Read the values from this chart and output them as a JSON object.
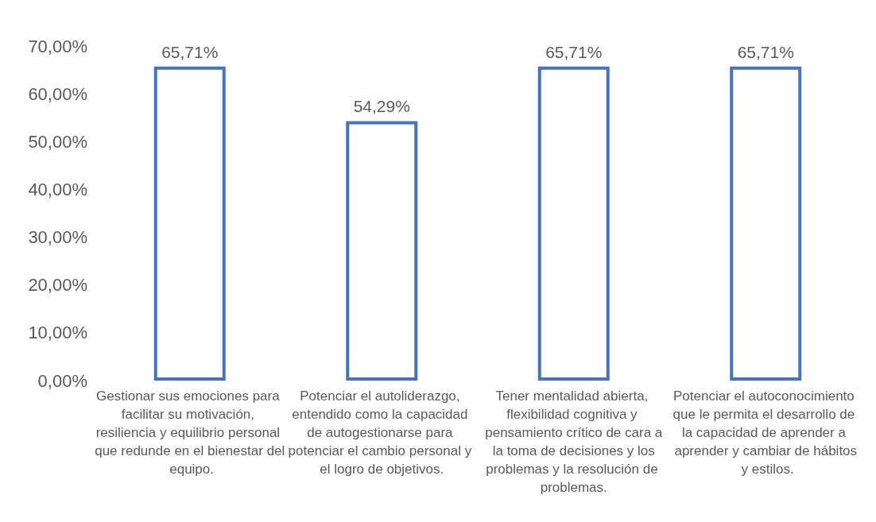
{
  "chart_data": {
    "type": "bar",
    "categories": [
      "Gestionar sus emociones para facilitar su motivación, resiliencia y equilibrio personal que redunde en el bienestar del equipo.",
      "Potenciar el autoliderazgo, entendido como la capacidad de autogestionarse para potenciar el cambio personal y el logro de objetivos.",
      "Tener mentalidad abierta, flexibilidad cognitiva y pensamiento crítico de cara a la toma de decisiones y los problemas y la resolución de problemas.",
      "Potenciar el autoconocimiento que le permita el desarrollo de la capacidad de aprender a aprender y cambiar de hábitos y estilos."
    ],
    "values": [
      65.71,
      54.29,
      65.71,
      65.71
    ],
    "value_labels": [
      "65,71%",
      "54,29%",
      "65,71%",
      "65,71%"
    ],
    "color": "#4472c4",
    "ylim": [
      0,
      70
    ],
    "yticks": [
      {
        "value": 0,
        "label": "0,00%"
      },
      {
        "value": 10,
        "label": "10,00%"
      },
      {
        "value": 20,
        "label": "20,00%"
      },
      {
        "value": 30,
        "label": "30,00%"
      },
      {
        "value": 40,
        "label": "40,00%"
      },
      {
        "value": 50,
        "label": "50,00%"
      },
      {
        "value": 60,
        "label": "60,00%"
      },
      {
        "value": 70,
        "label": "70,00%"
      }
    ],
    "grid": false
  }
}
